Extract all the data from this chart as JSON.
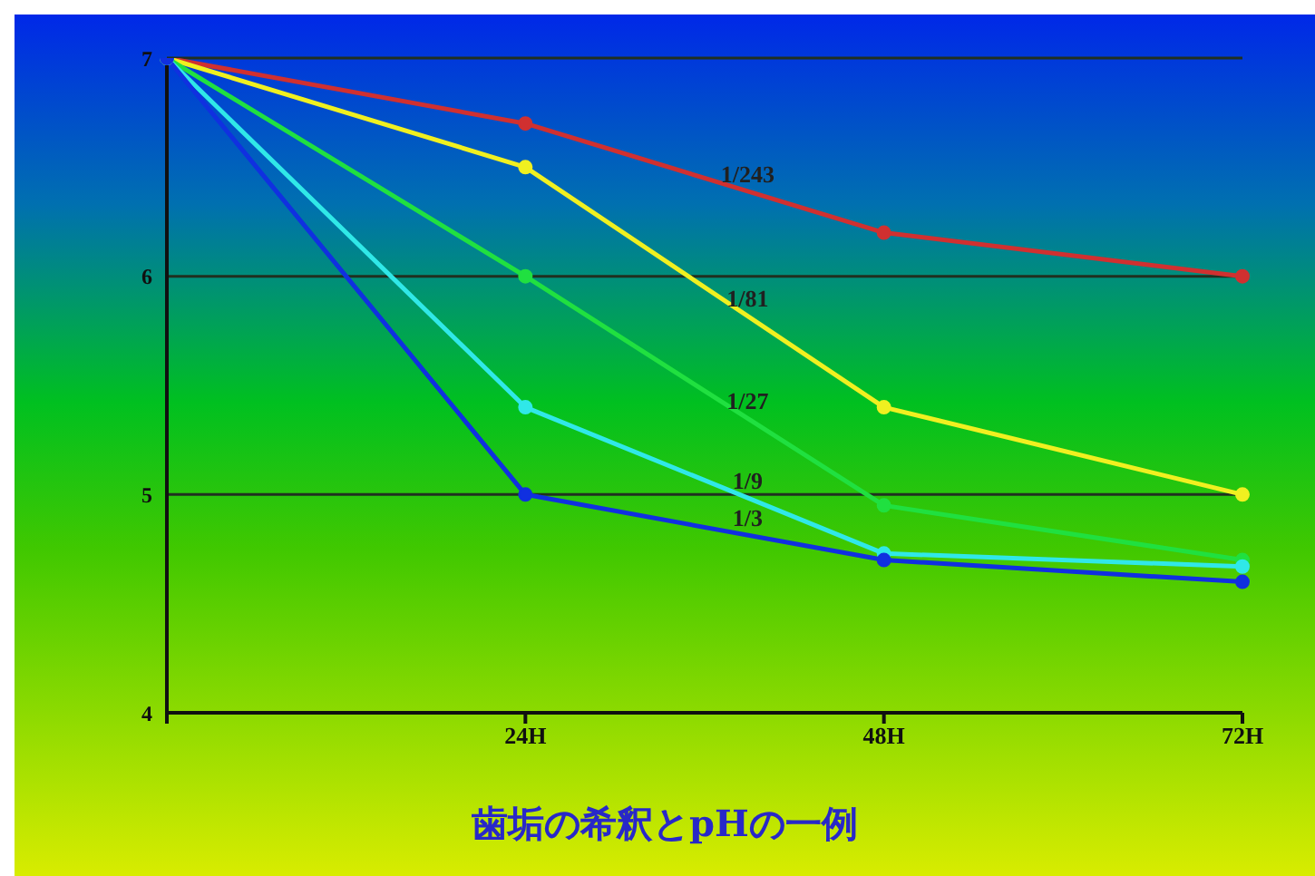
{
  "chart_data": {
    "type": "line",
    "title": "歯垢の希釈とpHの一例",
    "categories": [
      null,
      "24H",
      "48H",
      "72H"
    ],
    "series": [
      {
        "name": "1/243",
        "color": "#d03030",
        "values": [
          7,
          6.7,
          6.2,
          6.0
        ]
      },
      {
        "name": "1/81",
        "color": "#f0f020",
        "values": [
          7,
          6.5,
          5.4,
          5.0
        ]
      },
      {
        "name": "1/27",
        "color": "#20e040",
        "values": [
          7,
          6.0,
          4.95,
          4.7
        ]
      },
      {
        "name": "1/9",
        "color": "#30e8e8",
        "values": [
          7,
          5.4,
          4.73,
          4.67
        ]
      },
      {
        "name": "1/3",
        "color": "#1030e0",
        "values": [
          7,
          5.0,
          4.7,
          4.6
        ]
      }
    ],
    "ylim": [
      4,
      7
    ],
    "yticks": [
      4,
      5,
      6,
      7
    ],
    "grid": "y",
    "legend": false,
    "marker": "circle",
    "line_style": "solid"
  }
}
